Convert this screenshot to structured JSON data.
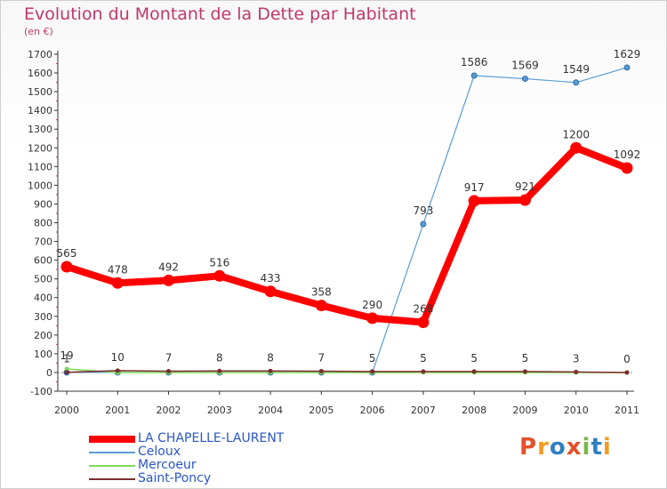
{
  "chart_data": {
    "type": "line",
    "title": "Evolution du Montant de la Dette par Habitant",
    "subtitle": "(en €)",
    "categories": [
      "2000",
      "2001",
      "2002",
      "2003",
      "2004",
      "2005",
      "2006",
      "2007",
      "2008",
      "2009",
      "2010",
      "2011"
    ],
    "ylim": [
      -100,
      1700
    ],
    "yticks": [
      -100,
      0,
      100,
      200,
      300,
      400,
      500,
      600,
      700,
      800,
      900,
      1000,
      1100,
      1200,
      1300,
      1400,
      1500,
      1600,
      1700
    ],
    "grid": false,
    "legend_position": "bottom-left",
    "series": [
      {
        "name": "LA CHAPELLE-LAURENT",
        "color": "#ff0000",
        "values": [
          565,
          478,
          492,
          516,
          433,
          358,
          290,
          268,
          917,
          921,
          1200,
          1092
        ]
      },
      {
        "name": "Celoux",
        "color": "#5b9bd5",
        "values": [
          0,
          0,
          0,
          0,
          0,
          0,
          0,
          793,
          1586,
          1569,
          1549,
          1629
        ]
      },
      {
        "name": "Mercoeur",
        "color": "#7ed957",
        "values": [
          19,
          0,
          0,
          0,
          0,
          0,
          0,
          0,
          0,
          0,
          0,
          0
        ]
      },
      {
        "name": "Saint-Poncy",
        "color": "#7b2c2c",
        "values": [
          1,
          10,
          7,
          8,
          8,
          7,
          5,
          5,
          5,
          5,
          3,
          0
        ]
      }
    ],
    "data_labels": [
      {
        "series": 0,
        "labels": [
          "565",
          "478",
          "492",
          "516",
          "433",
          "358",
          "290",
          "268",
          "917",
          "921",
          "1200",
          "1092"
        ]
      },
      {
        "series": 1,
        "labels": [
          "",
          "",
          "",
          "",
          "",
          "",
          "",
          "793",
          "1586",
          "1569",
          "1549",
          "1629"
        ]
      },
      {
        "series": 2,
        "labels": [
          "19",
          "",
          "",
          "",
          "",
          "",
          "",
          "",
          "",
          "",
          "",
          ""
        ]
      },
      {
        "series": 3,
        "labels": [
          "1",
          "10",
          "7",
          "8",
          "8",
          "7",
          "5",
          "5",
          "5",
          "5",
          "3",
          "0"
        ]
      }
    ]
  },
  "logo": {
    "text": "Proxiti",
    "colors": [
      "#e4502a",
      "#f29b21",
      "#2f7fc1",
      "#e4502a",
      "#7ab648",
      "#2f7fc1",
      "#f29b21"
    ]
  }
}
